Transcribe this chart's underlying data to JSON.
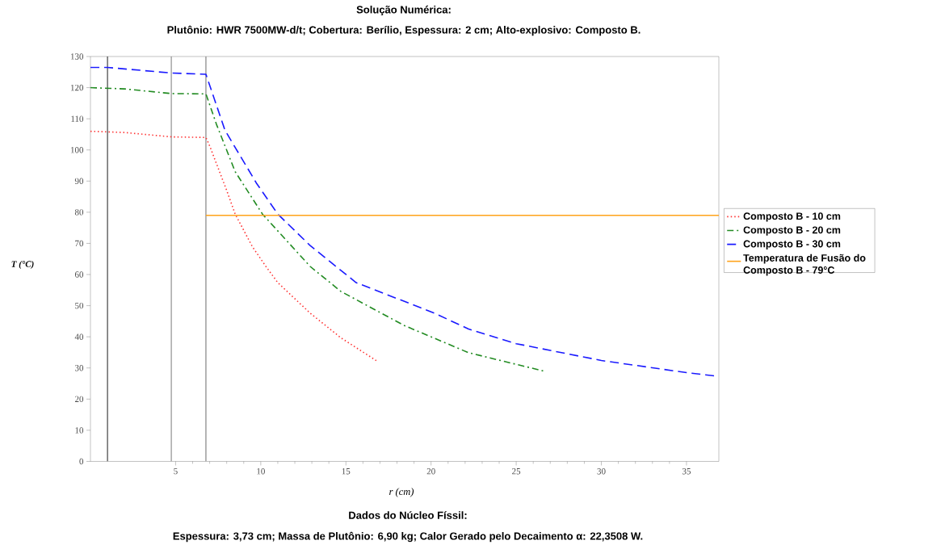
{
  "chart_data": {
    "type": "line",
    "title": "Solução Numérica:",
    "subtitle": "Plutônio: HWR 7500MW-d/t; Cobertura: Berílio, Espessura: 2 cm; Alto-explosivo: Composto B.",
    "xlabel": "r (cm)",
    "ylabel": "T (°C)",
    "annotations": [
      "Dados do Núcleo Físsil:",
      "Espessura: 3,73 cm; Massa de Plutônio: 6,90 kg; Calor Gerado pelo Decaimento α: 22,3508 W."
    ],
    "xlim": [
      0,
      36.9
    ],
    "ylim": [
      0,
      130
    ],
    "xticks": [
      5,
      10,
      15,
      20,
      25,
      30,
      35
    ],
    "yticks": [
      0,
      10,
      20,
      30,
      40,
      50,
      60,
      70,
      80,
      90,
      100,
      110,
      120,
      130
    ],
    "legend": "right",
    "series": [
      {
        "name": "Composto B - 10 cm",
        "color": "#ff3333",
        "line_style": "dotted",
        "x": [
          0,
          2,
          4.75,
          6.78,
          7.0,
          8.0,
          8.5,
          9.5,
          10.3,
          11,
          12.9,
          14.7,
          16.8
        ],
        "values": [
          106,
          105.6,
          104.2,
          104,
          101.3,
          87,
          79.4,
          69,
          62.6,
          57.4,
          47.6,
          39.7,
          32.3
        ]
      },
      {
        "name": "Composto B - 20 cm",
        "color": "#228b22",
        "line_style": "dashdot",
        "x": [
          0,
          2,
          4.75,
          6.78,
          7.4,
          8.5,
          10.1,
          12.9,
          14.7,
          18.4,
          22.2,
          23.1,
          26.7
        ],
        "values": [
          120,
          119.6,
          118.1,
          118,
          108.2,
          93,
          79.4,
          62.6,
          54.6,
          43.7,
          34.9,
          33.7,
          28.9
        ]
      },
      {
        "name": "Composto B - 30 cm",
        "color": "#1a1aff",
        "line_style": "dashed",
        "x": [
          0,
          1,
          4.75,
          6.78,
          7.9,
          9.75,
          11,
          12.9,
          15.6,
          20.2,
          22.2,
          25,
          30,
          35,
          36.9
        ],
        "values": [
          126.5,
          126.5,
          124.7,
          124.3,
          106.3,
          89.3,
          79.4,
          69.3,
          57.4,
          47.6,
          42.5,
          37.8,
          32.4,
          28.5,
          27.3
        ]
      },
      {
        "name": "Temperatura de Fusão do Composto B - 79°C",
        "color": "#ffa31a",
        "line_style": "solid",
        "x": [
          6.78,
          36.9
        ],
        "values": [
          79,
          79
        ]
      }
    ],
    "ref_lines": [
      {
        "axis": "x",
        "value": 1,
        "color": "#404040"
      },
      {
        "axis": "x",
        "value": 4.75,
        "color": "#808080"
      },
      {
        "axis": "x",
        "value": 6.78,
        "color": "#808080"
      }
    ]
  }
}
